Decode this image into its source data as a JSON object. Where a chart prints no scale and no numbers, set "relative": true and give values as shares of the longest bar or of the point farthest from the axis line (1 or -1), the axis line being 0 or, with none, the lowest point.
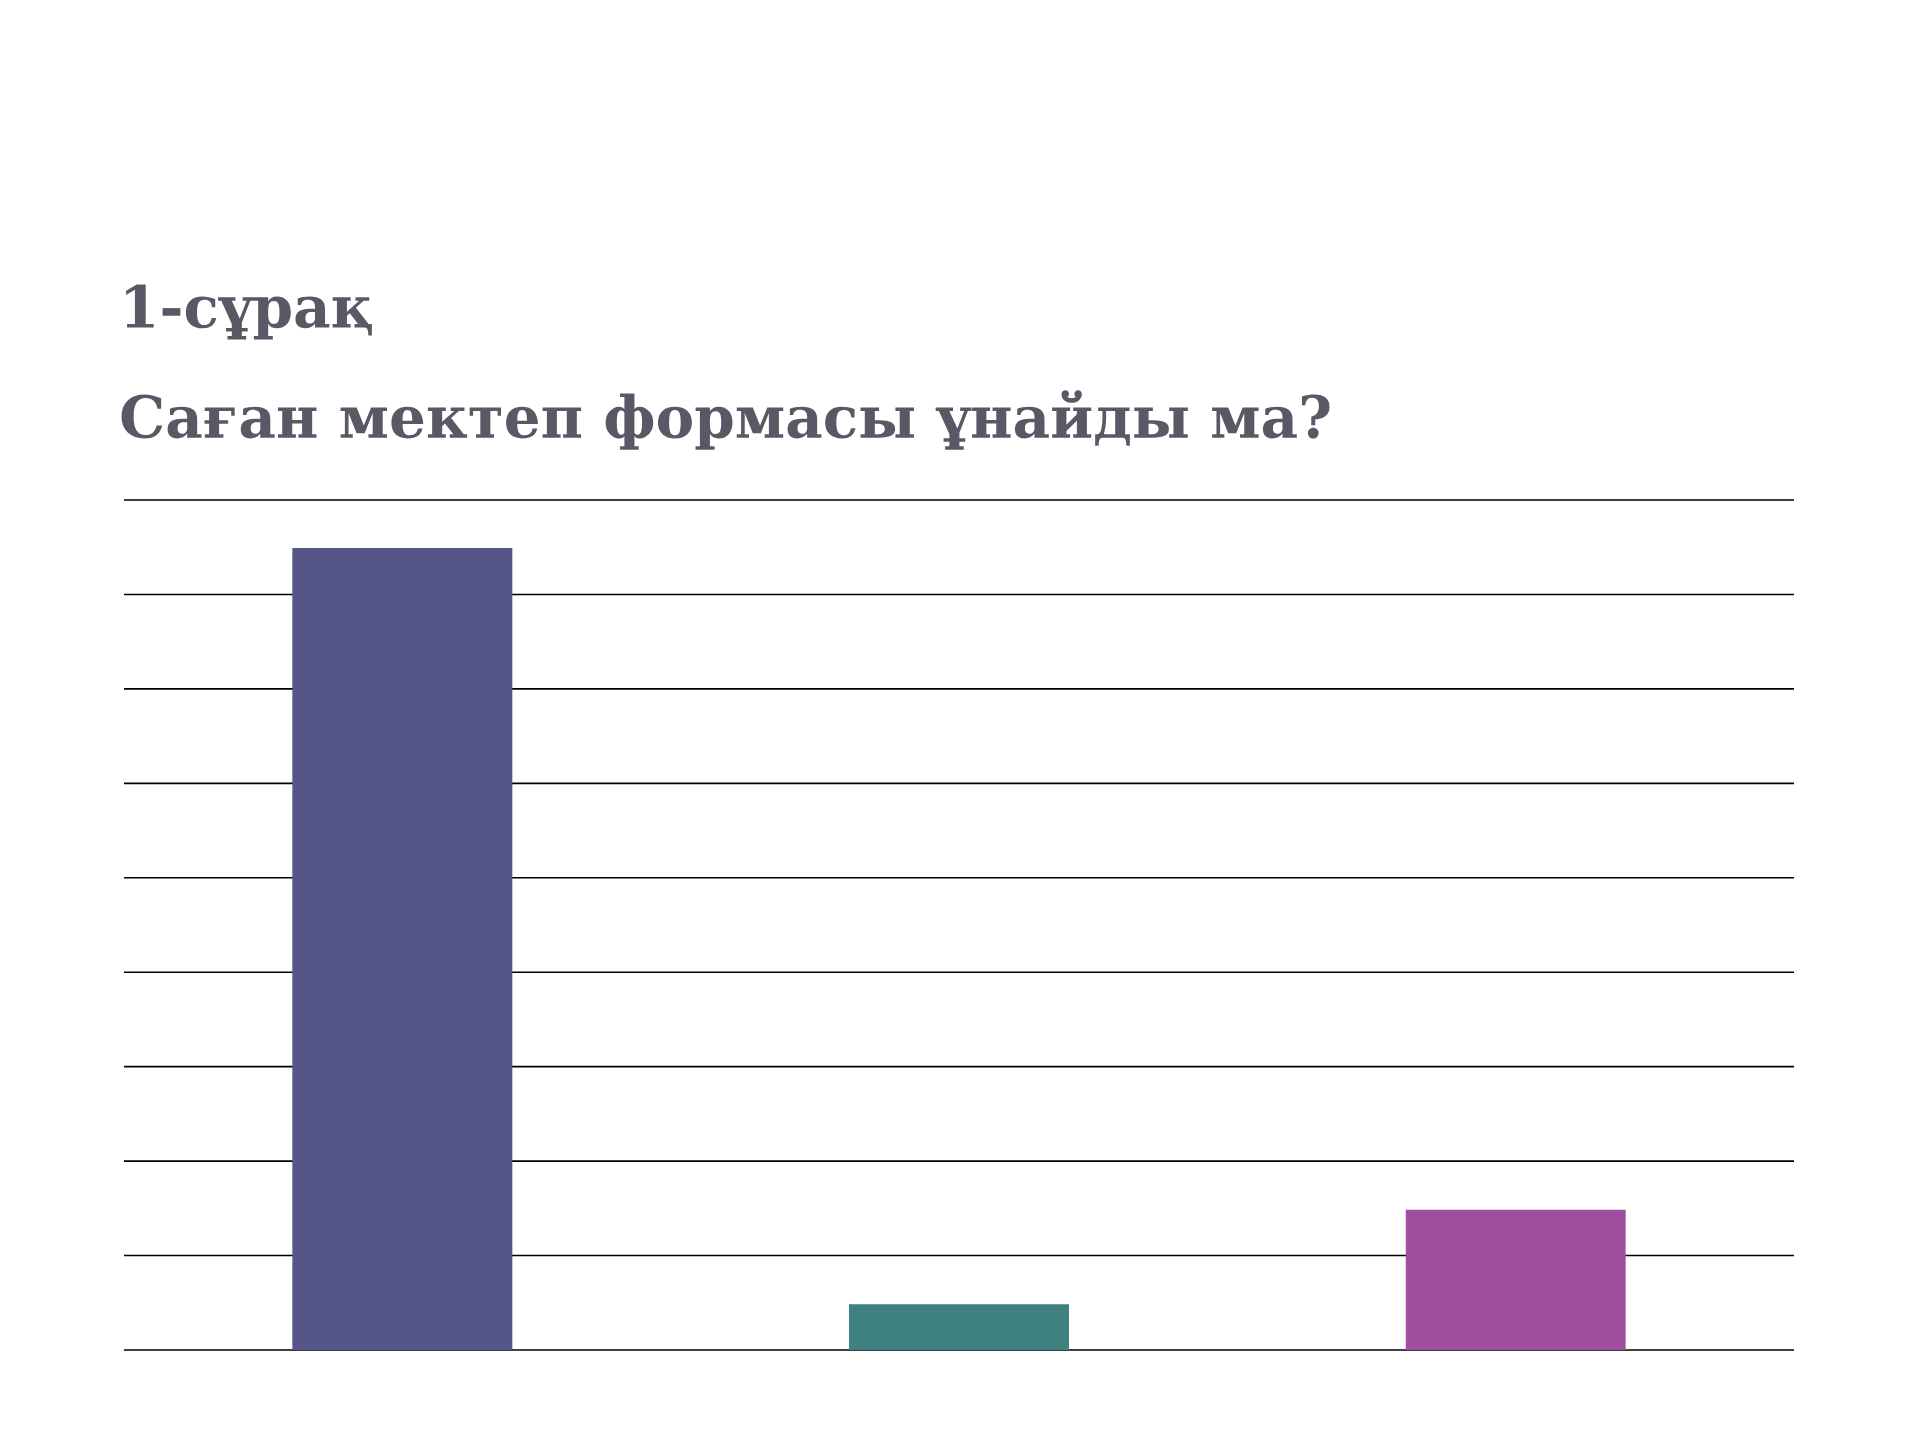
{
  "chart_data": {
    "type": "bar",
    "title": "1-сұрақ",
    "subtitle": "Саған мектеп формасы ұнайды ма?",
    "categories": [
      null,
      null,
      null
    ],
    "values": [
      1,
      0.057,
      0.175
    ],
    "colors": [
      "#555588",
      "#3f8080",
      "#a04fa0"
    ],
    "relative": true,
    "grid": "y"
  }
}
